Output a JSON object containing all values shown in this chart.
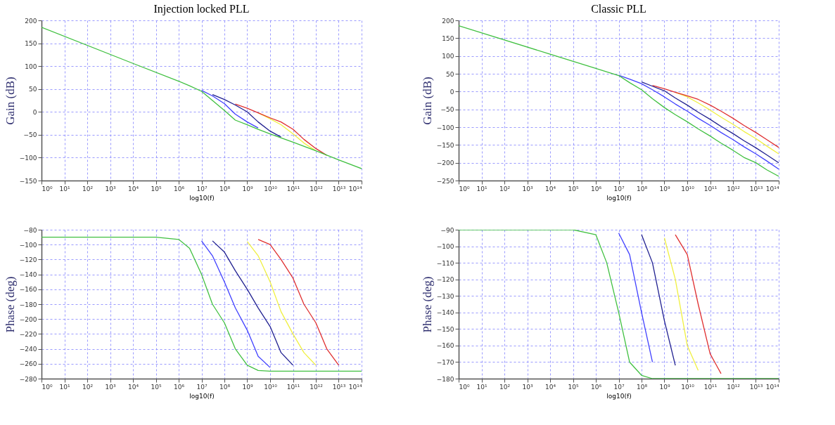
{
  "chart_data": [
    {
      "type": "line",
      "title": "Injection locked PLL",
      "xlabel": "log10(f)",
      "ylabel": "Gain (dB)",
      "log": "x",
      "grid": true,
      "xlim": [
        1,
        100000000000000.0
      ],
      "xticks": [
        {
          "value": 1,
          "label": "10⁰"
        },
        {
          "value": 10.0,
          "label": "10¹"
        },
        {
          "value": 100.0,
          "label": "10²"
        },
        {
          "value": 1000.0,
          "label": "10³"
        },
        {
          "value": 10000.0,
          "label": "10⁴"
        },
        {
          "value": 100000.0,
          "label": "10⁵"
        },
        {
          "value": 1000000.0,
          "label": "10⁶"
        },
        {
          "value": 10000000.0,
          "label": "10⁷"
        },
        {
          "value": 100000000.0,
          "label": "10⁸"
        },
        {
          "value": 1000000000.0,
          "label": "10⁹"
        },
        {
          "value": 10000000000.0,
          "label": "10¹⁰"
        },
        {
          "value": 100000000000.0,
          "label": "10¹¹"
        },
        {
          "value": 1000000000000.0,
          "label": "10¹²"
        },
        {
          "value": 10000000000000.0,
          "label": "10¹³"
        },
        {
          "value": 100000000000000.0,
          "label": "10¹⁴"
        }
      ],
      "ylim": [
        -150,
        200
      ],
      "yticks": [
        -150,
        -100,
        -50,
        0,
        50,
        100,
        150,
        200
      ],
      "series": [
        {
          "color": "#f0f040",
          "x": [
            3000000000.0,
            10000000000.0,
            30000000000.0,
            100000000000.0,
            300000000000.0,
            1000000000000.0
          ],
          "values": [
            -2,
            -15,
            -28,
            -48,
            -68,
            -85
          ]
        },
        {
          "color": "#e03030",
          "x": [
            300000000.0,
            1000000000.0,
            3000000000.0,
            10000000000.0,
            30000000000.0,
            100000000000.0,
            300000000000.0,
            1000000000000.0,
            3000000000000.0
          ],
          "values": [
            17,
            8,
            -2,
            -13,
            -22,
            -38,
            -60,
            -80,
            -95
          ]
        },
        {
          "color": "#202090",
          "x": [
            30000000.0,
            100000000.0,
            300000000.0,
            1000000000.0,
            3000000000.0,
            10000000000.0,
            30000000000.0
          ],
          "values": [
            38,
            27,
            15,
            0,
            -22,
            -42,
            -55
          ]
        },
        {
          "color": "#4040ff",
          "x": [
            10000000.0,
            30000000.0,
            100000000.0,
            300000000.0,
            1000000000.0,
            3000000000.0
          ],
          "values": [
            47,
            35,
            18,
            -5,
            -22,
            -35
          ]
        },
        {
          "color": "#40c040",
          "x": [
            1,
            10000.0,
            1000000.0,
            3000000.0,
            10000000.0,
            30000000.0,
            100000000.0,
            300000000.0,
            1000000000.0,
            3000000000.0,
            10000000000.0,
            100000000000.0,
            1000000000000.0,
            10000000000000.0,
            100000000000000.0
          ],
          "values": [
            185,
            106,
            67,
            57,
            45,
            25,
            3,
            -18,
            -28,
            -38,
            -48,
            -66,
            -85,
            -105,
            -124
          ]
        }
      ]
    },
    {
      "type": "line",
      "title": "Classic PLL",
      "xlabel": "log10(f)",
      "ylabel": "Gain (dB)",
      "log": "x",
      "grid": true,
      "xlim": [
        1,
        100000000000000.0
      ],
      "xticks": [
        {
          "value": 1,
          "label": "10⁰"
        },
        {
          "value": 10.0,
          "label": "10¹"
        },
        {
          "value": 100.0,
          "label": "10²"
        },
        {
          "value": 1000.0,
          "label": "10³"
        },
        {
          "value": 10000.0,
          "label": "10⁴"
        },
        {
          "value": 100000.0,
          "label": "10⁵"
        },
        {
          "value": 1000000.0,
          "label": "10⁶"
        },
        {
          "value": 10000000.0,
          "label": "10⁷"
        },
        {
          "value": 100000000.0,
          "label": "10⁸"
        },
        {
          "value": 1000000000.0,
          "label": "10⁹"
        },
        {
          "value": 10000000000.0,
          "label": "10¹⁰"
        },
        {
          "value": 100000000000.0,
          "label": "10¹¹"
        },
        {
          "value": 1000000000000.0,
          "label": "10¹²"
        },
        {
          "value": 10000000000000.0,
          "label": "10¹³"
        },
        {
          "value": 100000000000000.0,
          "label": "10¹⁴"
        }
      ],
      "ylim": [
        -250,
        200
      ],
      "yticks": [
        -250,
        -200,
        -150,
        -100,
        -50,
        0,
        50,
        100,
        150,
        200
      ],
      "series": [
        {
          "color": "#f0f040",
          "x": [
            3000000000.0,
            10000000000.0,
            30000000000.0,
            100000000000.0,
            300000000000.0,
            1000000000000.0,
            3000000000000.0,
            10000000000000.0,
            30000000000000.0,
            100000000000000.0
          ],
          "values": [
            -2,
            -15,
            -32,
            -52,
            -72,
            -92,
            -112,
            -132,
            -153,
            -175
          ]
        },
        {
          "color": "#e03030",
          "x": [
            300000000.0,
            1000000000.0,
            3000000000.0,
            10000000000.0,
            30000000000.0,
            100000000000.0,
            300000000000.0,
            1000000000000.0,
            3000000000000.0,
            10000000000000.0,
            30000000000000.0,
            100000000000000.0
          ],
          "values": [
            17,
            8,
            -2,
            -12,
            -22,
            -38,
            -55,
            -75,
            -95,
            -115,
            -135,
            -157
          ]
        },
        {
          "color": "#202090",
          "x": [
            100000000.0,
            300000000.0,
            1000000000.0,
            3000000000.0,
            10000000000.0,
            30000000000.0,
            100000000000.0,
            300000000000.0,
            1000000000000.0,
            3000000000000.0,
            10000000000000.0,
            30000000000000.0,
            100000000000000.0
          ],
          "values": [
            27,
            15,
            2,
            -18,
            -38,
            -58,
            -78,
            -98,
            -118,
            -138,
            -158,
            -178,
            -200
          ]
        },
        {
          "color": "#4040ff",
          "x": [
            10000000.0,
            30000000.0,
            100000000.0,
            300000000.0,
            1000000000.0,
            3000000000.0,
            10000000000.0,
            30000000000.0,
            100000000000.0,
            300000000000.0,
            1000000000000.0,
            3000000000000.0,
            10000000000000.0,
            30000000000000.0,
            100000000000000.0
          ],
          "values": [
            46,
            35,
            22,
            5,
            -15,
            -35,
            -55,
            -75,
            -95,
            -115,
            -135,
            -155,
            -175,
            -195,
            -218
          ]
        },
        {
          "color": "#40c040",
          "x": [
            1,
            10000.0,
            1000000.0,
            10000000.0,
            30000000.0,
            100000000.0,
            300000000.0,
            1000000000.0,
            3000000000.0,
            10000000000.0,
            30000000000.0,
            100000000000.0,
            300000000000.0,
            1000000000000.0,
            3000000000000.0,
            10000000000000.0,
            30000000000000.0,
            100000000000000.0
          ],
          "values": [
            185,
            105,
            65,
            45,
            25,
            5,
            -20,
            -45,
            -65,
            -85,
            -105,
            -125,
            -145,
            -165,
            -185,
            -200,
            -220,
            -238
          ]
        }
      ]
    },
    {
      "type": "line",
      "xlabel": "log10(f)",
      "ylabel": "Phase (deg)",
      "log": "x",
      "grid": true,
      "xlim": [
        1,
        100000000000000.0
      ],
      "xticks": [
        {
          "value": 1,
          "label": "10⁰"
        },
        {
          "value": 10.0,
          "label": "10¹"
        },
        {
          "value": 100.0,
          "label": "10²"
        },
        {
          "value": 1000.0,
          "label": "10³"
        },
        {
          "value": 10000.0,
          "label": "10⁴"
        },
        {
          "value": 100000.0,
          "label": "10⁵"
        },
        {
          "value": 1000000.0,
          "label": "10⁶"
        },
        {
          "value": 10000000.0,
          "label": "10⁷"
        },
        {
          "value": 100000000.0,
          "label": "10⁸"
        },
        {
          "value": 1000000000.0,
          "label": "10⁹"
        },
        {
          "value": 10000000000.0,
          "label": "10¹⁰"
        },
        {
          "value": 100000000000.0,
          "label": "10¹¹"
        },
        {
          "value": 1000000000000.0,
          "label": "10¹²"
        },
        {
          "value": 10000000000000.0,
          "label": "10¹³"
        },
        {
          "value": 100000000000000.0,
          "label": "10¹⁴"
        }
      ],
      "ylim": [
        -280,
        -80
      ],
      "yticks": [
        -280,
        -260,
        -240,
        -220,
        -200,
        -180,
        -160,
        -140,
        -120,
        -100,
        -80
      ],
      "series": [
        {
          "color": "#f0f040",
          "x": [
            1000000000.0,
            3000000000.0,
            10000000000.0,
            30000000000.0,
            100000000000.0,
            300000000000.0,
            1000000000000.0
          ],
          "values": [
            -96,
            -115,
            -150,
            -190,
            -220,
            -245,
            -262
          ]
        },
        {
          "color": "#e03030",
          "x": [
            3000000000.0,
            10000000000.0,
            30000000000.0,
            100000000000.0,
            300000000000.0,
            1000000000000.0,
            3000000000000.0,
            10000000000000.0
          ],
          "values": [
            -93,
            -100,
            -120,
            -145,
            -180,
            -205,
            -240,
            -262
          ]
        },
        {
          "color": "#202090",
          "x": [
            30000000.0,
            100000000.0,
            300000000.0,
            1000000000.0,
            3000000000.0,
            10000000000.0,
            30000000000.0,
            100000000000.0
          ],
          "values": [
            -95,
            -110,
            -135,
            -160,
            -185,
            -210,
            -245,
            -262
          ]
        },
        {
          "color": "#4040ff",
          "x": [
            10000000.0,
            30000000.0,
            100000000.0,
            300000000.0,
            1000000000.0,
            3000000000.0,
            10000000000.0
          ],
          "values": [
            -95,
            -115,
            -150,
            -185,
            -215,
            -250,
            -265
          ]
        },
        {
          "color": "#40c040",
          "x": [
            1,
            100000.0,
            1000000.0,
            3000000.0,
            10000000.0,
            30000000.0,
            100000000.0,
            300000000.0,
            1000000000.0,
            3000000000.0,
            10000000000.0,
            100000000000000.0
          ],
          "values": [
            -90,
            -90,
            -93,
            -105,
            -140,
            -180,
            -205,
            -240,
            -262,
            -269,
            -270,
            -270
          ]
        }
      ]
    },
    {
      "type": "line",
      "xlabel": "log10(f)",
      "ylabel": "Phase (deg)",
      "log": "x",
      "grid": true,
      "xlim": [
        1,
        100000000000000.0
      ],
      "xticks": [
        {
          "value": 1,
          "label": "10⁰"
        },
        {
          "value": 10.0,
          "label": "10¹"
        },
        {
          "value": 100.0,
          "label": "10²"
        },
        {
          "value": 1000.0,
          "label": "10³"
        },
        {
          "value": 10000.0,
          "label": "10⁴"
        },
        {
          "value": 100000.0,
          "label": "10⁵"
        },
        {
          "value": 1000000.0,
          "label": "10⁶"
        },
        {
          "value": 10000000.0,
          "label": "10⁷"
        },
        {
          "value": 100000000.0,
          "label": "10⁸"
        },
        {
          "value": 1000000000.0,
          "label": "10⁹"
        },
        {
          "value": 10000000000.0,
          "label": "10¹⁰"
        },
        {
          "value": 100000000000.0,
          "label": "10¹¹"
        },
        {
          "value": 1000000000000.0,
          "label": "10¹²"
        },
        {
          "value": 10000000000000.0,
          "label": "10¹³"
        },
        {
          "value": 100000000000000.0,
          "label": "10¹⁴"
        }
      ],
      "ylim": [
        -180,
        -90
      ],
      "yticks": [
        -180,
        -170,
        -160,
        -150,
        -140,
        -130,
        -120,
        -110,
        -100,
        -90
      ],
      "series": [
        {
          "color": "#f0f040",
          "x": [
            1000000000.0,
            3000000000.0,
            10000000000.0,
            30000000000.0
          ],
          "values": [
            -95,
            -120,
            -160,
            -175
          ]
        },
        {
          "color": "#e03030",
          "x": [
            3000000000.0,
            10000000000.0,
            30000000000.0,
            100000000000.0,
            300000000000.0
          ],
          "values": [
            -93,
            -105,
            -135,
            -165,
            -177
          ]
        },
        {
          "color": "#202090",
          "x": [
            100000000.0,
            300000000.0,
            1000000000.0,
            3000000000.0
          ],
          "values": [
            -93,
            -110,
            -145,
            -172
          ]
        },
        {
          "color": "#4040ff",
          "x": [
            10000000.0,
            30000000.0,
            100000000.0,
            300000000.0
          ],
          "values": [
            -92,
            -105,
            -140,
            -170
          ]
        },
        {
          "color": "#40c040",
          "x": [
            1,
            100000.0,
            1000000.0,
            3000000.0,
            10000000.0,
            30000000.0,
            100000000.0,
            300000000.0,
            100000000000000.0
          ],
          "values": [
            -90,
            -90,
            -93,
            -110,
            -140,
            -170,
            -178,
            -180,
            -180
          ]
        }
      ]
    }
  ]
}
